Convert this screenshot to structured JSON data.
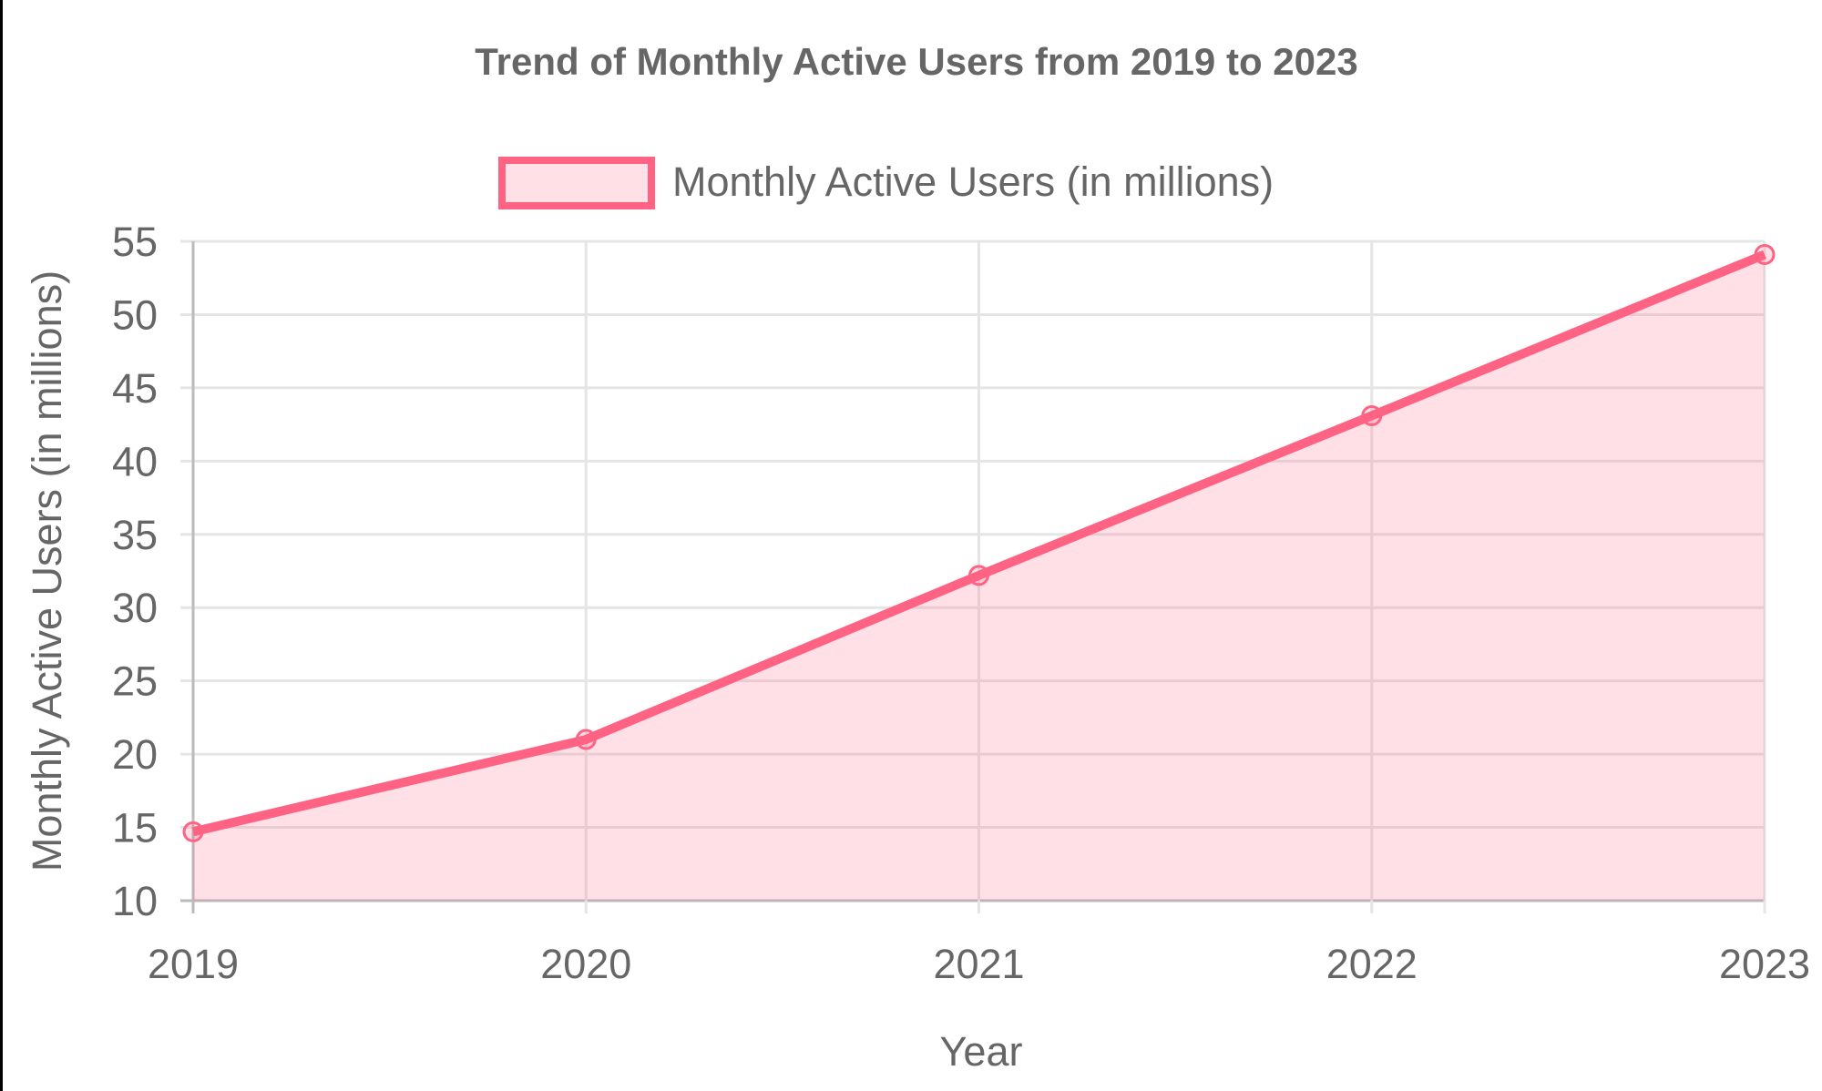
{
  "chart_data": {
    "type": "line",
    "title": "Trend of Monthly Active Users from 2019 to 2023",
    "xlabel": "Year",
    "ylabel": "Monthly Active Users (in millions)",
    "categories": [
      "2019",
      "2020",
      "2021",
      "2022",
      "2023"
    ],
    "series": [
      {
        "name": "Monthly Active Users (in millions)",
        "values": [
          14.7,
          21,
          32.2,
          43.1,
          54.1
        ],
        "color": "#ff6384",
        "fill": "rgba(255,99,132,0.2)",
        "filled": true
      }
    ],
    "ylim": [
      10,
      55
    ],
    "yticks": [
      "10",
      "15",
      "20",
      "25",
      "30",
      "35",
      "40",
      "45",
      "50",
      "55"
    ],
    "grid": true,
    "legend": "top"
  }
}
